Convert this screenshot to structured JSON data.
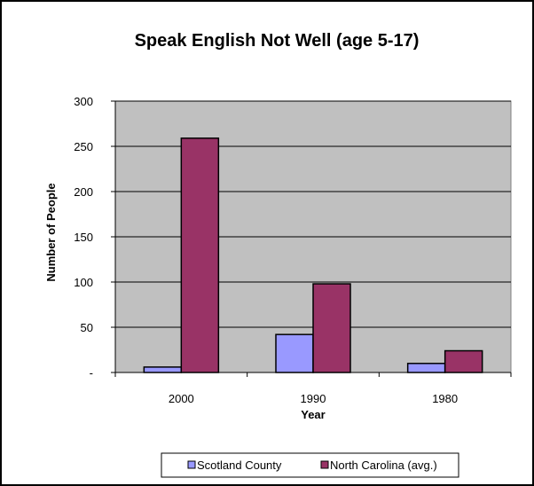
{
  "chart_data": {
    "type": "bar",
    "title": "Speak English Not Well (age 5-17)",
    "xlabel": "Year",
    "ylabel": "Number of People",
    "categories": [
      "2000",
      "1990",
      "1980"
    ],
    "series": [
      {
        "name": "Scotland County",
        "values": [
          6,
          42,
          10
        ],
        "color": "#9999ff"
      },
      {
        "name": "North Carolina (avg.)",
        "values": [
          259,
          98,
          24
        ],
        "color": "#993366"
      }
    ],
    "ylim": [
      0,
      300
    ],
    "yticks": [
      {
        "value": 0,
        "label": "-"
      },
      {
        "value": 50,
        "label": "50"
      },
      {
        "value": 100,
        "label": "100"
      },
      {
        "value": 150,
        "label": "150"
      },
      {
        "value": 200,
        "label": "200"
      },
      {
        "value": 250,
        "label": "250"
      },
      {
        "value": 300,
        "label": "300"
      }
    ],
    "grid": true,
    "legend_position": "bottom",
    "plot_background": "#c0c0c0"
  }
}
